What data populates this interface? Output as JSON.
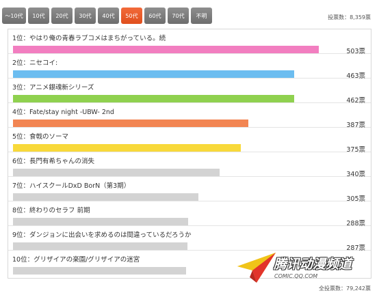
{
  "tabs": [
    "〜10代",
    "10代",
    "20代",
    "30代",
    "40代",
    "50代",
    "60代",
    "70代",
    "不明"
  ],
  "active_tab": 5,
  "vote_count_top": "投票数：8,359票",
  "vote_count_bottom": "全投票数：79,242票",
  "colors": {
    "pink": "#f27ec0",
    "blue": "#6cbdf0",
    "green": "#8fd14f",
    "orange": "#f28552",
    "yellow": "#f8d93a",
    "gray": "#d3d3d3",
    "active_tab": "#e85a2a"
  },
  "ranking": [
    {
      "label": "1位：やはり俺の青春ラブコメはまちがっている。続",
      "votes": "503票",
      "value": 503,
      "color": "#f27ec0"
    },
    {
      "label": "2位：ニセコイ:",
      "votes": "463票",
      "value": 463,
      "color": "#6cbdf0"
    },
    {
      "label": "3位：アニメ銀魂新シリーズ",
      "votes": "462票",
      "value": 462,
      "color": "#8fd14f"
    },
    {
      "label": "4位：Fate/stay night -UBW- 2nd",
      "votes": "387票",
      "value": 387,
      "color": "#f28552"
    },
    {
      "label": "5位：食戟のソーマ",
      "votes": "375票",
      "value": 375,
      "color": "#f8d93a"
    },
    {
      "label": "6位：長門有希ちゃんの消失",
      "votes": "340票",
      "value": 340,
      "color": "#d3d3d3"
    },
    {
      "label": "7位：ハイスクールDxD BorN（第3期）",
      "votes": "305票",
      "value": 305,
      "color": "#d3d3d3"
    },
    {
      "label": "8位：終わりのセラフ 前期",
      "votes": "288票",
      "value": 288,
      "color": "#d3d3d3"
    },
    {
      "label": "9位：ダンジョンに出会いを求めるのは間違っているだろうか",
      "votes": "287票",
      "value": 287,
      "color": "#d3d3d3"
    },
    {
      "label": "10位：グリザイアの楽園/グリザイアの迷宮",
      "votes": "",
      "value": 285,
      "color": "#d3d3d3"
    }
  ],
  "watermark": {
    "text": "腾讯动漫频道",
    "url": "COMIC.QQ.COM",
    "icon": "paper-plane-logo-icon"
  }
}
